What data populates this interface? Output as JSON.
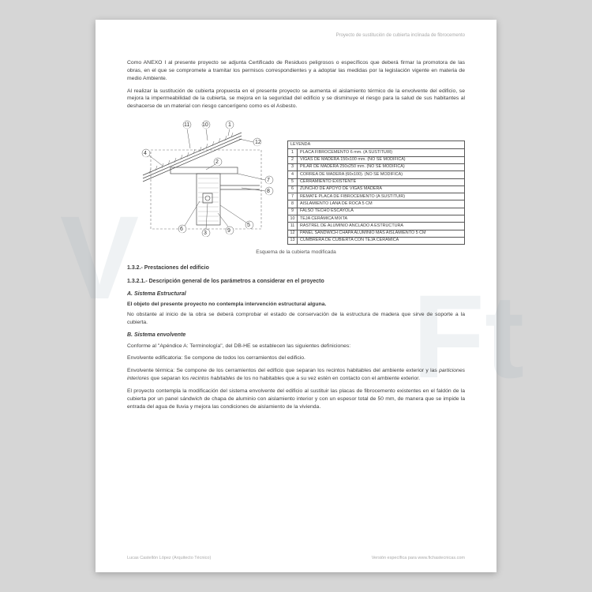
{
  "header": {
    "right": "Proyecto de sustitución de cubierta inclinada de fibrocemento"
  },
  "paragraphs": {
    "p1": "Como ANEXO I al presente proyecto se adjunta Certificado de Residuos peligrosos o específicos que deberá firmar la promotora de las obras, en el que se compromete a tramitar los permisos correspondientes y a adoptar las medidas por la legislación vigente en materia de medio Ambiente.",
    "p2": "Al realizar la sustitución de cubierta propuesta en el presente proyecto se aumenta el aislamiento térmico de la envolvente del edificio, se mejora la impermeabilidad de la cubierta, se mejora en la seguridad del edificio y se disminuye el riesgo para la salud de sus habitantes al deshacerse de un material con riesgo cancerígeno como es el Asbesto."
  },
  "legend": {
    "title": "LEYENDA",
    "items": [
      {
        "n": "1",
        "t": "PLACA FIBROCEMENTO 6 mm. (A SUSTITUIR)"
      },
      {
        "n": "2",
        "t": "VIGAS DE MADERA 150x100 mm. (NO SE MODIFICA)"
      },
      {
        "n": "3",
        "t": "PILAR DE MADERA 250x250 mm. (NO SE MODIFICA)"
      },
      {
        "n": "4",
        "t": "CORREA DE MADERA (60x100). (NO SE MODIFICA)"
      },
      {
        "n": "5",
        "t": "CERRAMIENTO EXISTENTE"
      },
      {
        "n": "6",
        "t": "ZUNCHO DE APOYO DE VIGAS MADERA"
      },
      {
        "n": "7",
        "t": "REMATE PLACA DE FIBROCEMENTO (A SUSTITUIR)"
      },
      {
        "n": "8",
        "t": "AISLAMIENTO LANA DE ROCA 5 CM"
      },
      {
        "n": "9",
        "t": "FALSO TECHO ESCAYOLA"
      },
      {
        "n": "10",
        "t": "TEJA CERÁMICA MIXTA"
      },
      {
        "n": "11",
        "t": "RASTREL DE ALUMINIO ANCLADO A ESTRUCTURA"
      },
      {
        "n": "12",
        "t": "PANEL SANDWICH CHAPA ALUMINIO MÁS AISLAMIENTO 5 CM"
      },
      {
        "n": "13",
        "t": "CUMBRERA DE CUBIERTA CON TEJA CERÁMICA"
      }
    ]
  },
  "caption": "Esquema de la cubierta modificada",
  "headings": {
    "h1": "1.3.2.- Prestaciones del edificio",
    "h2": "1.3.2.1.- Descripción general de los parámetros a considerar en el proyecto",
    "hA": "A. Sistema Estructural",
    "hB": "B. Sistema envolvente"
  },
  "sectionA": {
    "bold": "El objeto del presente proyecto no contempla intervención estructural alguna.",
    "p": "No obstante al inicio de la obra se deberá comprobar el estado de conservación de la estructura de madera que sirve de soporte a la cubierta."
  },
  "sectionB": {
    "p1": "Conforme al \"Apéndice A: Terminología\", del DB-HE se establecen las siguientes definiciones:",
    "p2": "Envolvente edificatoria: Se compone de todos los cerramientos del edificio.",
    "p3a": "Envolvente térmica: Se compone de los cerramientos del edificio que separan los recintos habitables del ambiente exterior y las ",
    "p3i": "particiones interiores",
    "p3b": " que separan los ",
    "p3i2": "recintos habitables",
    "p3c": " de los no habitables que a su vez estén en contacto con el ambiente exterior.",
    "p4": "El proyecto contempla la modificación del sistema envolvente del edificio al sustituir las placas de fibrocemento existentes en el faldón de la cubierta por un panel sándwich de chapa de aluminio con aislamiento interior y con un espesor total de 50 mm, de manera que se impide la entrada del agua de lluvia y mejora las condiciones de aislamiento de la vivienda."
  },
  "footer": {
    "left": "Lucas Castellón López (Arquitecto Técnico)",
    "right": "Versión específica para www.fichastecnicas.com"
  },
  "callouts": [
    "1",
    "2",
    "3",
    "4",
    "5",
    "6",
    "7",
    "8",
    "9",
    "10",
    "11",
    "12"
  ],
  "colors": {
    "stroke": "#4a4a4a",
    "hatch": "#6a6a6a",
    "light": "#bcbcbc"
  }
}
